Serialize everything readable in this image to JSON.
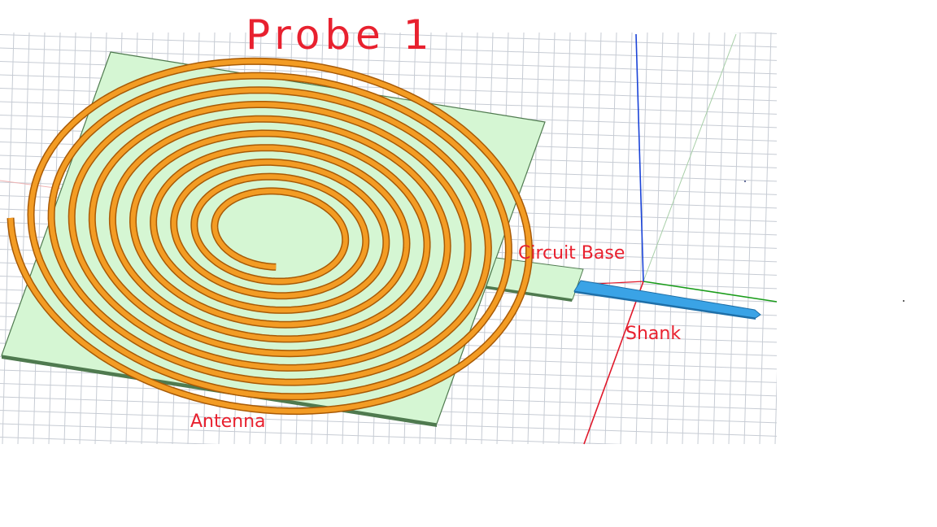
{
  "title": "Probe 1",
  "labels": {
    "antenna": "Antenna",
    "circuit_base": "Circuit Base",
    "shank": "Shank"
  },
  "colors": {
    "grid": "#c7ccd4",
    "substrate_fill": "#d5f6d3",
    "substrate_edge": "#4f7a4f",
    "coil": "#f39c24",
    "coil_edge": "#a85a06",
    "shank": "#3aa3e6",
    "annotation": "#e8212f",
    "axis_x": "#e0182a",
    "axis_y": "#1b9d1b",
    "axis_z": "#1b44d8"
  }
}
